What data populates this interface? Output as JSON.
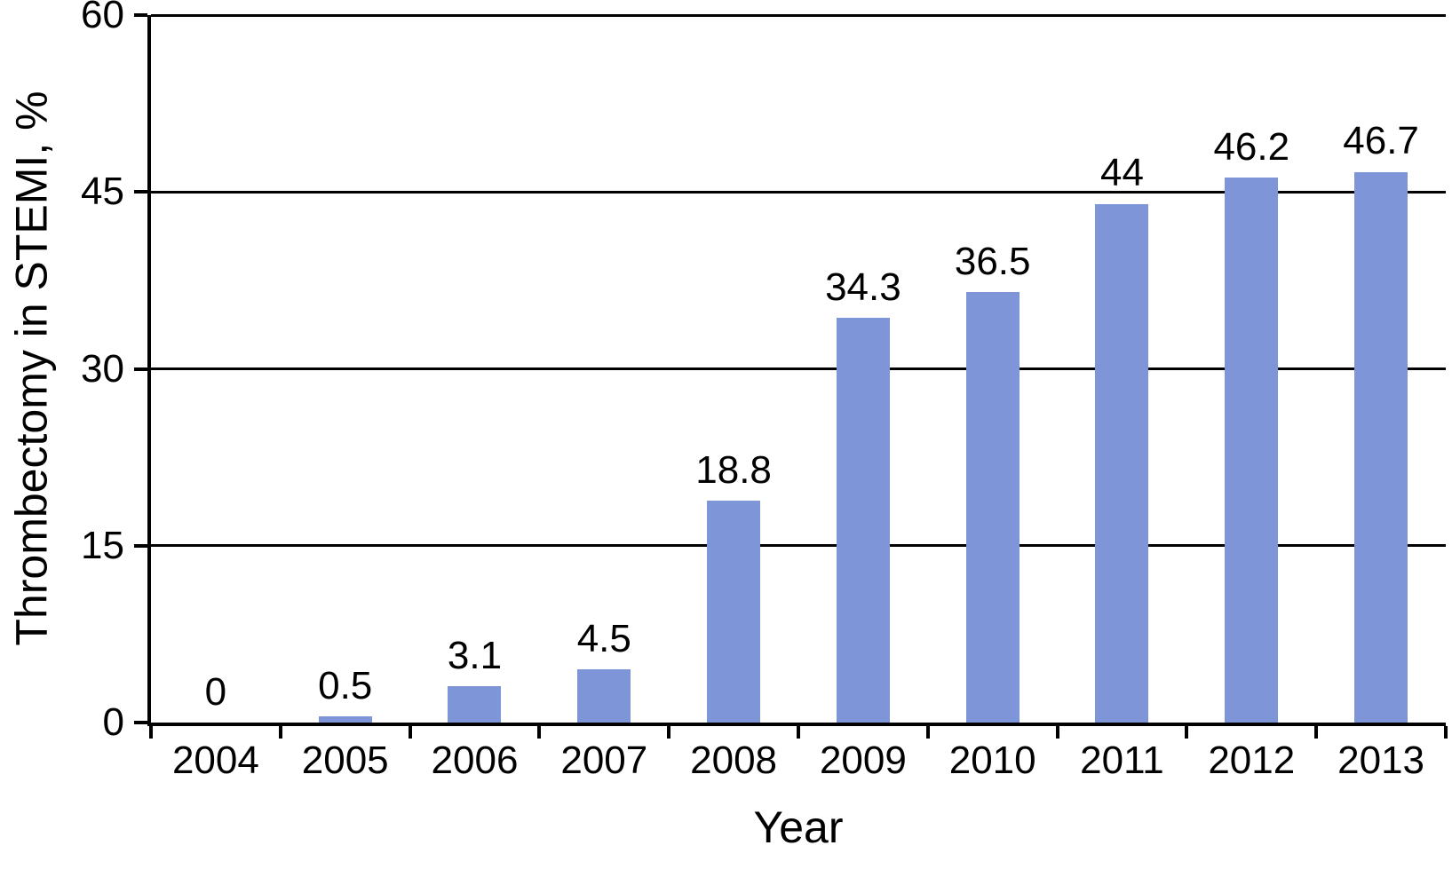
{
  "chart_data": {
    "type": "bar",
    "title": "",
    "xlabel": "Year",
    "ylabel": "Thrombectomy in STEMI, %",
    "categories": [
      "2004",
      "2005",
      "2006",
      "2007",
      "2008",
      "2009",
      "2010",
      "2011",
      "2012",
      "2013"
    ],
    "values": [
      0,
      0.5,
      3.1,
      4.5,
      18.8,
      34.3,
      36.5,
      44,
      46.2,
      46.7
    ],
    "value_labels": [
      "0",
      "0.5",
      "3.1",
      "4.5",
      "18.8",
      "34.3",
      "36.5",
      "44",
      "46.2",
      "46.7"
    ],
    "ylim": [
      0,
      60
    ],
    "yticks": [
      0,
      15,
      30,
      45,
      60
    ],
    "ytick_labels": [
      "0",
      "15",
      "30",
      "45",
      "60"
    ],
    "grid": "horizontal",
    "legend_position": "none",
    "bar_color": "#7e96d8",
    "axis_color": "#000000",
    "background_color": "#ffffff"
  }
}
